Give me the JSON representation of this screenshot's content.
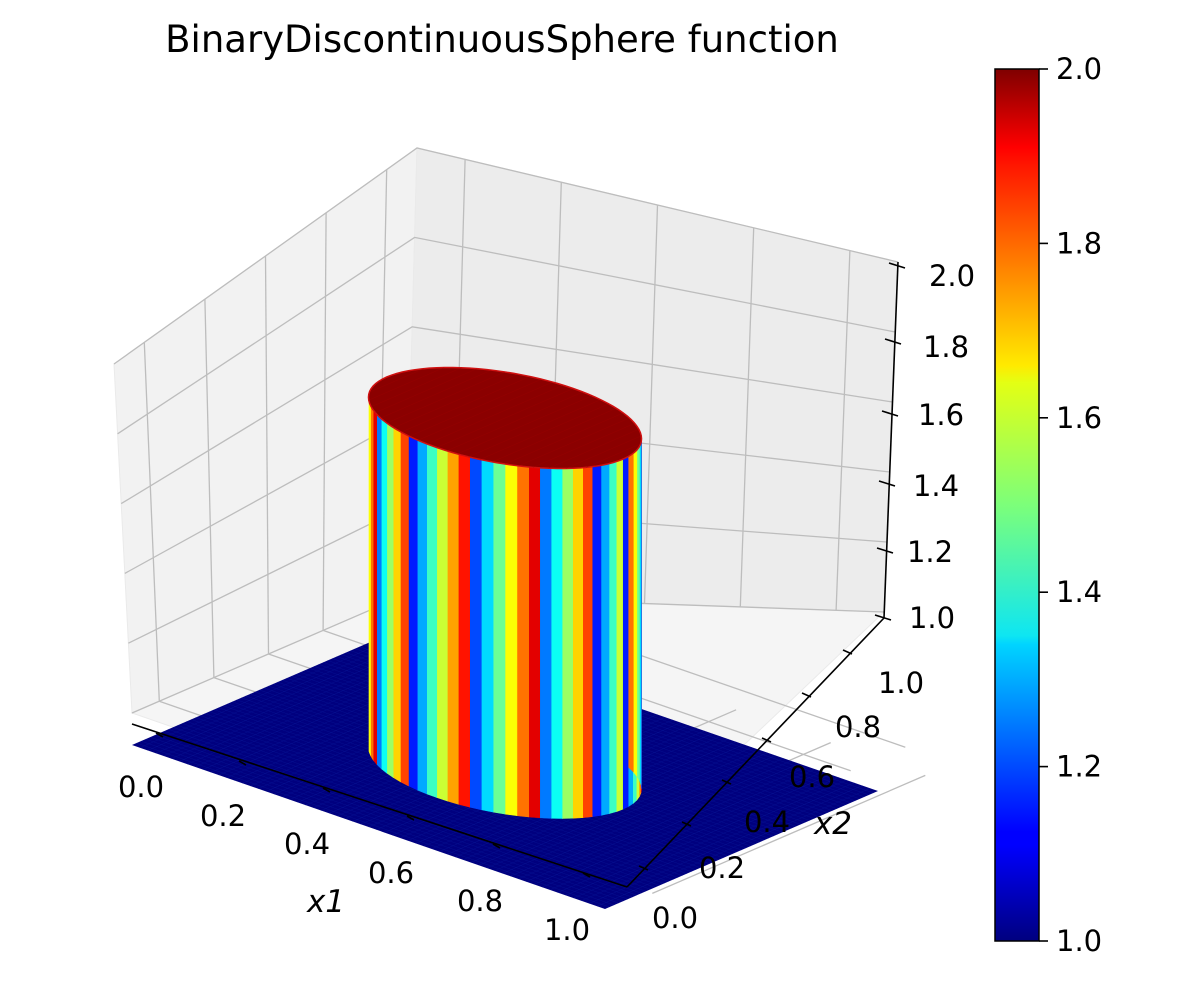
{
  "chart_data": {
    "type": "surface",
    "title": "BinaryDiscontinuousSphere function",
    "xlabel": "x1",
    "ylabel": "x2",
    "zlabel": "",
    "xlim": [
      0.0,
      1.0
    ],
    "ylim": [
      0.0,
      1.0
    ],
    "zlim": [
      1.0,
      2.0
    ],
    "x_ticks": [
      "0.0",
      "0.2",
      "0.4",
      "0.6",
      "0.8",
      "1.0"
    ],
    "y_ticks": [
      "0.0",
      "0.2",
      "0.4",
      "0.6",
      "0.8",
      "1.0"
    ],
    "z_ticks": [
      "1.0",
      "1.2",
      "1.4",
      "1.6",
      "1.8",
      "2.0"
    ],
    "colorbar": {
      "colormap": "jet",
      "range": [
        1.0,
        2.0
      ],
      "ticks": [
        "1.0",
        "1.2",
        "1.4",
        "1.6",
        "1.8",
        "2.0"
      ]
    },
    "surface": {
      "description": "z = 2 inside a circle of radius ~0.25 centered at (0.5, 0.5), z = 1 elsewhere",
      "center": [
        0.5,
        0.5
      ],
      "radius": 0.25,
      "inside_value": 2.0,
      "outside_value": 1.0
    },
    "grid": true
  }
}
